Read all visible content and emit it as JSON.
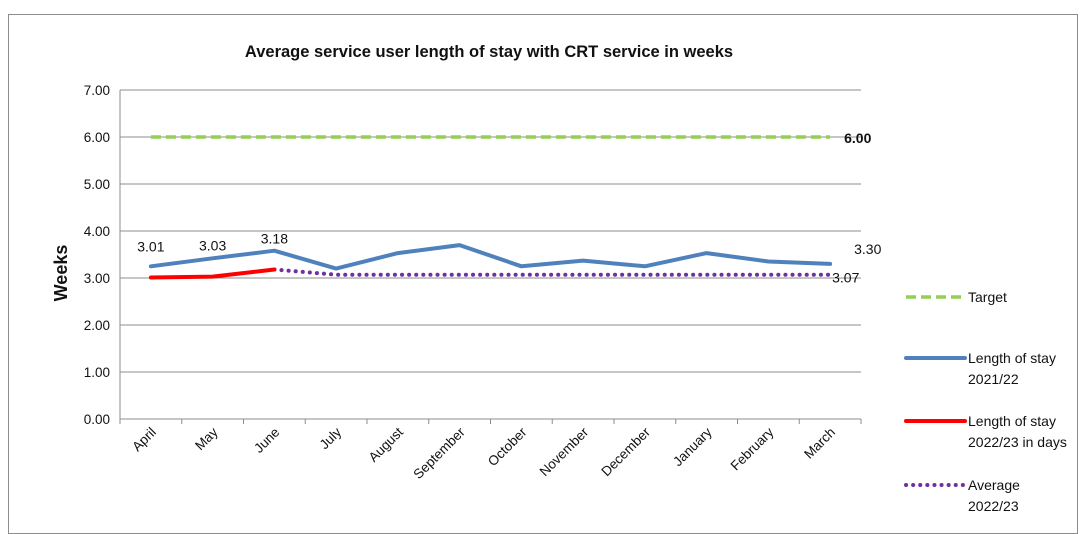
{
  "chart_data": {
    "type": "line",
    "title": "Average service user length of stay with CRT service in weeks",
    "xlabel": "",
    "ylabel": "Weeks",
    "ylim": [
      0,
      7
    ],
    "ytick_labels": [
      "0.00",
      "1.00",
      "2.00",
      "3.00",
      "4.00",
      "5.00",
      "6.00",
      "7.00"
    ],
    "grid": "horizontal",
    "legend_position": "right",
    "categories": [
      "April",
      "May",
      "June",
      "July",
      "August",
      "September",
      "October",
      "November",
      "December",
      "January",
      "February",
      "March"
    ],
    "series": [
      {
        "name": "Target",
        "style": "dashed",
        "color": "#92d050",
        "values": [
          6,
          6,
          6,
          6,
          6,
          6,
          6,
          6,
          6,
          6,
          6,
          6
        ]
      },
      {
        "name": "Length of stay 2021/22",
        "style": "solid",
        "color": "#4f81bd",
        "values": [
          3.25,
          3.42,
          3.58,
          3.2,
          3.53,
          3.7,
          3.25,
          3.37,
          3.25,
          3.53,
          3.35,
          3.3
        ]
      },
      {
        "name": "Length of stay 2022/23 in days",
        "style": "solid",
        "color": "#ff0000",
        "values": [
          3.01,
          3.03,
          3.18,
          null,
          null,
          null,
          null,
          null,
          null,
          null,
          null,
          null
        ]
      },
      {
        "name": "Average 2022/23",
        "style": "dotted",
        "color": "#7030a0",
        "values": [
          null,
          null,
          3.18,
          3.07,
          3.07,
          3.07,
          3.07,
          3.07,
          3.07,
          3.07,
          3.07,
          3.07
        ]
      }
    ],
    "legend_labels": [
      [
        "Target"
      ],
      [
        "Length of stay",
        "2021/22"
      ],
      [
        "Length of stay",
        "2022/23 in days"
      ],
      [
        "Average",
        "2022/23"
      ]
    ],
    "data_labels": [
      {
        "text": "3.01",
        "series": 2,
        "index": 0
      },
      {
        "text": "3.03",
        "series": 2,
        "index": 1
      },
      {
        "text": "3.18",
        "series": 2,
        "index": 2
      },
      {
        "text": "6.00",
        "series": 0,
        "index": 11
      },
      {
        "text": "3.30",
        "series": 1,
        "index": 11
      },
      {
        "text": "3.07",
        "series": 3,
        "index": 11
      }
    ]
  }
}
